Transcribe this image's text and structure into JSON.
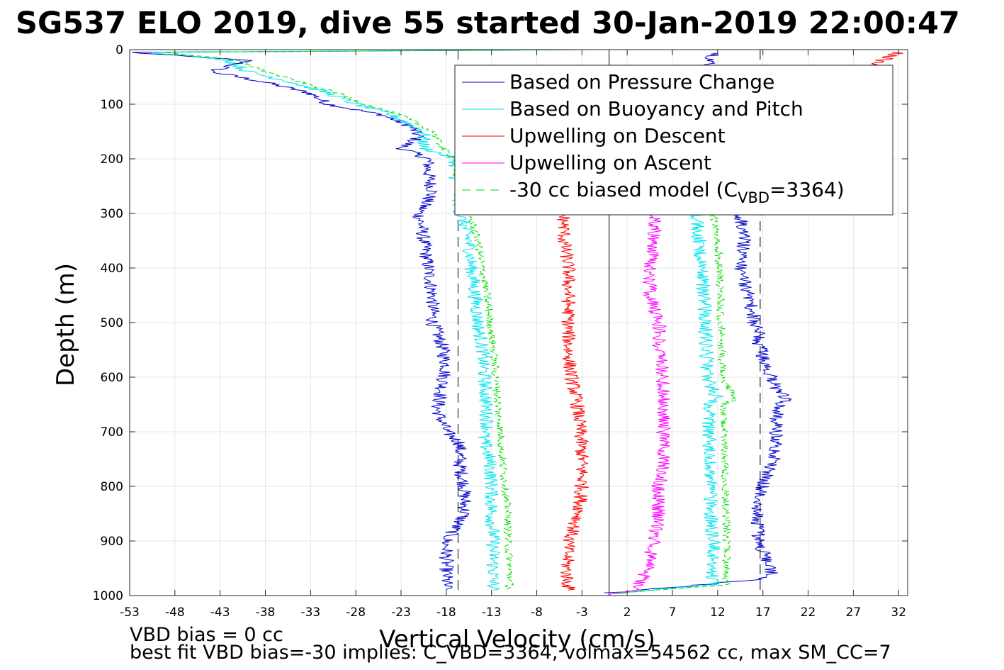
{
  "chart_data": {
    "type": "line",
    "title": "SG537 ELO 2019, dive 55 started 30-Jan-2019 22:00:47",
    "xlabel": "Vertical Velocity (cm/s)",
    "ylabel": "Depth (m)",
    "xlim": [
      -53,
      33
    ],
    "ylim": [
      0,
      1000
    ],
    "y_reversed": true,
    "grid": true,
    "x_ticks": [
      -53,
      -48,
      -43,
      -38,
      -33,
      -28,
      -23,
      -18,
      -13,
      -8,
      -3,
      2,
      7,
      12,
      17,
      22,
      27,
      32
    ],
    "x_tick_labels": [
      "-53",
      "-48",
      "-43",
      "-38",
      "-33",
      "-28",
      "-23",
      "-18",
      "-13",
      "-8",
      "-3",
      "2",
      "7",
      "12",
      "17",
      "22",
      "27",
      "32"
    ],
    "y_ticks": [
      0,
      100,
      200,
      300,
      400,
      500,
      600,
      700,
      800,
      900,
      1000
    ],
    "y_tick_labels": [
      "0",
      "100",
      "200",
      "300",
      "400",
      "500",
      "600",
      "700",
      "800",
      "900",
      "1000"
    ],
    "legend_position": "top-right",
    "reference_lines": [
      {
        "x": -16.7,
        "style": "dashed",
        "color": "#000000"
      },
      {
        "x": 16.7,
        "style": "dashed",
        "color": "#000000"
      },
      {
        "x": 0,
        "style": "solid",
        "color": "#000000"
      }
    ],
    "series": [
      {
        "name": "Based on Pressure Change",
        "color": "#0000cc",
        "style": "solid",
        "descent": {
          "depth": [
            0,
            5,
            20,
            40,
            60,
            80,
            100,
            120,
            140,
            160,
            180,
            200,
            225,
            260,
            300,
            350,
            400,
            450,
            500,
            540,
            580,
            620,
            660,
            700,
            720,
            760,
            800,
            850,
            900,
            950,
            980,
            990
          ],
          "velocity": [
            -2,
            -53,
            -40,
            -44,
            -38,
            -33,
            -31,
            -25,
            -22,
            -21,
            -23,
            -20,
            -20,
            -19.5,
            -21,
            -20.5,
            -20,
            -19.5,
            -19.5,
            -18.5,
            -18,
            -18.5,
            -19,
            -18,
            -16.5,
            -16.5,
            -16,
            -16,
            -18,
            -18,
            -18,
            -18
          ]
        },
        "ascent": {
          "depth": [
            995,
            970,
            960,
            940,
            900,
            860,
            820,
            780,
            740,
            700,
            660,
            640,
            620,
            600,
            560,
            540,
            520,
            500,
            450,
            400,
            350,
            300,
            250,
            200,
            150,
            100,
            60,
            40,
            20,
            5
          ],
          "velocity": [
            0,
            17,
            18,
            17.5,
            16.5,
            16.5,
            16.5,
            17.5,
            18.5,
            18.5,
            18.5,
            19.5,
            18.5,
            18,
            17,
            16.5,
            16.5,
            16,
            15.5,
            14.5,
            15,
            14.5,
            14,
            13.5,
            13,
            12.5,
            12,
            11,
            11,
            12
          ]
        }
      },
      {
        "name": "Based on Buoyancy and Pitch",
        "color": "#00e5ee",
        "style": "solid",
        "descent": {
          "depth": [
            0,
            5,
            20,
            40,
            60,
            80,
            100,
            120,
            150,
            180,
            200,
            225,
            260,
            300,
            350,
            400,
            450,
            500,
            550,
            600,
            650,
            700,
            710,
            750,
            800,
            850,
            900,
            950,
            990
          ],
          "velocity": [
            -5,
            -50,
            -42,
            -40,
            -35,
            -31,
            -28,
            -24,
            -20.5,
            -20.5,
            -17,
            -17,
            -16.7,
            -16.5,
            -15.5,
            -15.2,
            -14.8,
            -14.5,
            -14,
            -13.8,
            -13.6,
            -13.4,
            -14,
            -13.2,
            -13,
            -13,
            -12.8,
            -12.8,
            -12.8
          ]
        },
        "ascent": {
          "depth": [
            995,
            980,
            950,
            900,
            850,
            800,
            750,
            700,
            650,
            640,
            600,
            550,
            500,
            450,
            400,
            350,
            300,
            260,
            230
          ],
          "velocity": [
            1,
            11.5,
            11.5,
            11.5,
            11.2,
            11.3,
            11.2,
            11,
            11,
            12,
            10.8,
            10.8,
            10.6,
            10.5,
            10.2,
            10,
            9.5,
            9.5,
            9
          ]
        }
      },
      {
        "name": "Upwelling on Descent",
        "color": "#ff0000",
        "style": "solid",
        "descent": {
          "depth": [
            5,
            300,
            350,
            400,
            450,
            500,
            550,
            600,
            650,
            700,
            750,
            800,
            850,
            900,
            950,
            990
          ],
          "velocity": [
            32,
            -5,
            -5,
            -4.5,
            -4.5,
            -4.5,
            -4.5,
            -4.2,
            -3.5,
            -3.2,
            -3,
            -3,
            -3.3,
            -4.5,
            -4.7,
            -4.5
          ]
        }
      },
      {
        "name": "Upwelling on Ascent",
        "color": "#ff00ff",
        "style": "solid",
        "ascent": {
          "depth": [
            1000,
            990,
            960,
            900,
            850,
            800,
            750,
            700,
            650,
            600,
            550,
            500,
            450,
            400,
            350,
            300
          ],
          "velocity": [
            0,
            3,
            4,
            5,
            5.5,
            5.5,
            6,
            6,
            6,
            6,
            5.5,
            5.5,
            4.5,
            4.5,
            5,
            5
          ]
        }
      },
      {
        "name": "-30 cc biased model (C_VBD=3364)",
        "color": "#00dd00",
        "style": "dashed",
        "descent": {
          "depth": [
            0,
            5,
            20,
            40,
            60,
            80,
            100,
            120,
            150,
            180,
            200,
            225,
            300,
            350,
            400,
            450,
            500,
            550,
            600,
            650,
            700,
            750,
            800,
            850,
            900,
            950,
            990
          ],
          "velocity": [
            -3,
            -49,
            -41,
            -38,
            -34,
            -30,
            -27,
            -23,
            -19.5,
            -18.5,
            -17,
            -17,
            -15.5,
            -14.5,
            -14,
            -13.5,
            -13.2,
            -12.8,
            -12.5,
            -12.3,
            -12,
            -11.8,
            -11.5,
            -11.2,
            -11.2,
            -11,
            -11
          ]
        },
        "ascent": {
          "depth": [
            995,
            980,
            950,
            900,
            850,
            800,
            750,
            700,
            650,
            640,
            600,
            550,
            500,
            450,
            400,
            350,
            300
          ],
          "velocity": [
            1,
            13,
            13,
            13,
            13,
            12.8,
            12.8,
            12.7,
            12.6,
            14,
            12.5,
            12.5,
            12.4,
            12.3,
            12.2,
            12,
            11.5
          ]
        }
      }
    ],
    "legend": [
      "Based on Pressure Change",
      "Based on Buoyancy and Pitch",
      "Upwelling on Descent",
      "Upwelling on Ascent"
    ],
    "legend_last": {
      "prefix": "-30 cc biased model (C",
      "sub": "VBD",
      "suffix": "=3364)"
    },
    "annotations": [
      "VBD bias = 0 cc",
      "best fit VBD bias=-30 implies: C_VBD=3364, volmax=54562 cc, max SM_CC=7"
    ]
  }
}
